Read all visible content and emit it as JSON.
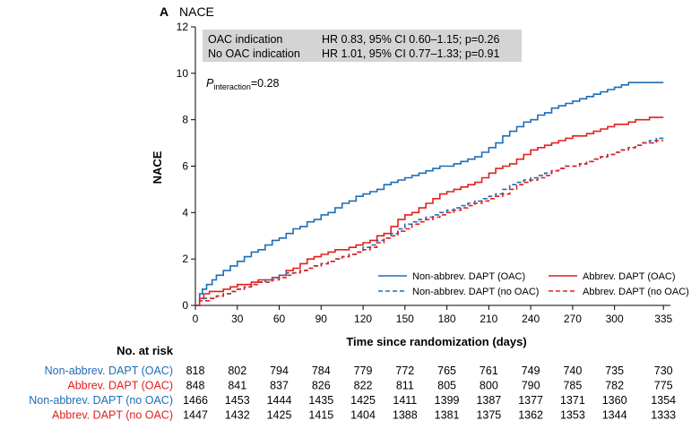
{
  "panel": {
    "letter": "A",
    "title": "NACE"
  },
  "chart_data": {
    "type": "line",
    "step": true,
    "xlabel": "Time since randomization (days)",
    "ylabel": "NACE",
    "xlim": [
      0,
      340
    ],
    "ylim": [
      0,
      12
    ],
    "x_ticks": [
      0,
      30,
      60,
      90,
      120,
      150,
      180,
      210,
      240,
      270,
      300,
      335
    ],
    "y_ticks": [
      0,
      2,
      4,
      6,
      8,
      10,
      12
    ],
    "grid": false,
    "legend_position": "bottom-right",
    "hr_box": [
      {
        "label": "OAC indication",
        "value": "HR 0.83, 95% CI 0.60–1.15; p=0.26"
      },
      {
        "label": "No OAC indication",
        "value": "HR 1.01, 95% CI 0.77–1.33; p=0.91"
      }
    ],
    "interaction": {
      "p": "P",
      "sub": "interaction",
      "value": "=0.28"
    },
    "series": [
      {
        "name": "Non-abbrev. DAPT (OAC)",
        "color": "#1f6db5",
        "dash": "solid",
        "x": [
          0,
          3,
          5,
          8,
          12,
          15,
          20,
          25,
          30,
          35,
          40,
          45,
          50,
          55,
          60,
          65,
          70,
          75,
          80,
          85,
          90,
          95,
          100,
          105,
          110,
          115,
          120,
          125,
          130,
          135,
          140,
          145,
          150,
          155,
          160,
          165,
          170,
          175,
          180,
          185,
          190,
          195,
          200,
          205,
          210,
          215,
          220,
          225,
          230,
          235,
          240,
          245,
          250,
          255,
          260,
          265,
          270,
          275,
          280,
          285,
          290,
          295,
          300,
          305,
          310,
          315,
          320,
          325,
          330,
          335
        ],
        "y": [
          0,
          0.5,
          0.7,
          0.9,
          1.1,
          1.3,
          1.5,
          1.7,
          1.9,
          2.1,
          2.3,
          2.4,
          2.6,
          2.8,
          2.9,
          3.1,
          3.3,
          3.4,
          3.6,
          3.7,
          3.9,
          4.0,
          4.2,
          4.4,
          4.5,
          4.7,
          4.8,
          4.9,
          5.0,
          5.2,
          5.3,
          5.4,
          5.5,
          5.6,
          5.7,
          5.8,
          5.9,
          6.0,
          6.0,
          6.1,
          6.2,
          6.3,
          6.4,
          6.6,
          6.8,
          7.0,
          7.3,
          7.5,
          7.7,
          7.9,
          8.0,
          8.2,
          8.3,
          8.5,
          8.6,
          8.7,
          8.8,
          8.9,
          9.0,
          9.1,
          9.2,
          9.3,
          9.4,
          9.5,
          9.6,
          9.6,
          9.6,
          9.6,
          9.6,
          9.6
        ]
      },
      {
        "name": "Abbrev. DAPT (OAC)",
        "color": "#e0201e",
        "dash": "solid",
        "x": [
          0,
          3,
          6,
          10,
          15,
          20,
          25,
          30,
          35,
          40,
          45,
          50,
          55,
          60,
          65,
          70,
          75,
          80,
          85,
          90,
          95,
          100,
          105,
          110,
          115,
          120,
          125,
          130,
          135,
          140,
          145,
          150,
          155,
          160,
          165,
          170,
          175,
          180,
          185,
          190,
          195,
          200,
          205,
          210,
          215,
          220,
          225,
          230,
          235,
          240,
          245,
          250,
          255,
          260,
          265,
          270,
          275,
          280,
          285,
          290,
          295,
          300,
          305,
          310,
          315,
          320,
          325,
          330,
          335
        ],
        "y": [
          0,
          0.3,
          0.5,
          0.6,
          0.6,
          0.7,
          0.8,
          0.9,
          0.9,
          1.0,
          1.1,
          1.1,
          1.2,
          1.3,
          1.5,
          1.6,
          1.8,
          2.0,
          2.1,
          2.2,
          2.3,
          2.4,
          2.4,
          2.5,
          2.6,
          2.7,
          2.8,
          3.0,
          3.1,
          3.4,
          3.7,
          3.9,
          4.0,
          4.2,
          4.4,
          4.6,
          4.8,
          4.9,
          5.0,
          5.1,
          5.2,
          5.3,
          5.5,
          5.7,
          5.9,
          6.0,
          6.1,
          6.3,
          6.5,
          6.7,
          6.8,
          6.9,
          7.0,
          7.1,
          7.2,
          7.3,
          7.3,
          7.4,
          7.5,
          7.6,
          7.7,
          7.8,
          7.8,
          7.9,
          8.0,
          8.0,
          8.1,
          8.1,
          8.1
        ]
      },
      {
        "name": "Non-abbrev. DAPT (no OAC)",
        "color": "#1f6db5",
        "dash": "dashed",
        "x": [
          0,
          3,
          6,
          10,
          15,
          20,
          25,
          30,
          35,
          40,
          45,
          50,
          55,
          60,
          65,
          70,
          75,
          80,
          85,
          90,
          95,
          100,
          105,
          110,
          115,
          120,
          125,
          130,
          135,
          140,
          145,
          150,
          155,
          160,
          165,
          170,
          175,
          180,
          185,
          190,
          195,
          200,
          205,
          210,
          215,
          220,
          225,
          230,
          235,
          240,
          245,
          250,
          255,
          260,
          265,
          270,
          275,
          280,
          285,
          290,
          295,
          300,
          305,
          310,
          315,
          320,
          325,
          330,
          335
        ],
        "y": [
          0,
          0.2,
          0.3,
          0.3,
          0.4,
          0.5,
          0.6,
          0.7,
          0.8,
          0.9,
          1.0,
          1.1,
          1.2,
          1.3,
          1.4,
          1.4,
          1.5,
          1.6,
          1.7,
          1.8,
          1.9,
          2.0,
          2.1,
          2.2,
          2.3,
          2.5,
          2.6,
          2.8,
          2.9,
          3.1,
          3.3,
          3.5,
          3.6,
          3.7,
          3.8,
          3.9,
          4.0,
          4.1,
          4.2,
          4.3,
          4.4,
          4.5,
          4.6,
          4.7,
          4.8,
          5.0,
          5.2,
          5.3,
          5.4,
          5.5,
          5.6,
          5.7,
          5.8,
          5.9,
          6.0,
          6.0,
          6.1,
          6.2,
          6.3,
          6.4,
          6.5,
          6.6,
          6.7,
          6.8,
          6.9,
          7.0,
          7.1,
          7.2,
          7.2
        ]
      },
      {
        "name": "Abbrev. DAPT (no OAC)",
        "color": "#e0201e",
        "dash": "dashed",
        "x": [
          0,
          3,
          6,
          10,
          15,
          20,
          25,
          30,
          35,
          40,
          45,
          50,
          55,
          60,
          65,
          70,
          75,
          80,
          85,
          90,
          95,
          100,
          105,
          110,
          115,
          120,
          125,
          130,
          135,
          140,
          145,
          150,
          155,
          160,
          165,
          170,
          175,
          180,
          185,
          190,
          195,
          200,
          205,
          210,
          215,
          220,
          225,
          230,
          235,
          240,
          245,
          250,
          255,
          260,
          265,
          270,
          275,
          280,
          285,
          290,
          295,
          300,
          305,
          310,
          315,
          320,
          325,
          330,
          335
        ],
        "y": [
          0,
          0.2,
          0.2,
          0.3,
          0.4,
          0.5,
          0.6,
          0.7,
          0.8,
          0.9,
          1.0,
          1.0,
          1.1,
          1.2,
          1.3,
          1.4,
          1.5,
          1.6,
          1.7,
          1.8,
          1.9,
          2.0,
          2.1,
          2.2,
          2.3,
          2.4,
          2.5,
          2.7,
          2.9,
          3.0,
          3.2,
          3.3,
          3.5,
          3.6,
          3.7,
          3.8,
          3.9,
          4.0,
          4.1,
          4.2,
          4.3,
          4.4,
          4.5,
          4.6,
          4.7,
          4.8,
          5.0,
          5.2,
          5.3,
          5.4,
          5.5,
          5.6,
          5.8,
          5.9,
          6.0,
          6.0,
          6.1,
          6.2,
          6.3,
          6.4,
          6.5,
          6.6,
          6.7,
          6.8,
          6.9,
          7.0,
          7.0,
          7.1,
          7.1
        ]
      }
    ]
  },
  "risk_table": {
    "title": "No. at risk",
    "rows": [
      {
        "label": "Non-abbrev. DAPT (OAC)",
        "color": "#1f6db5",
        "values": [
          "818",
          "802",
          "794",
          "784",
          "779",
          "772",
          "765",
          "761",
          "749",
          "740",
          "735",
          "730"
        ]
      },
      {
        "label": "Abbrev. DAPT (OAC)",
        "color": "#e0201e",
        "values": [
          "848",
          "841",
          "837",
          "826",
          "822",
          "811",
          "805",
          "800",
          "790",
          "785",
          "782",
          "775"
        ]
      },
      {
        "label": "Non-abbrev. DAPT (no OAC)",
        "color": "#1f6db5",
        "values": [
          "1466",
          "1453",
          "1444",
          "1435",
          "1425",
          "1411",
          "1399",
          "1387",
          "1377",
          "1371",
          "1360",
          "1354"
        ]
      },
      {
        "label": "Abbrev. DAPT (no OAC)",
        "color": "#e0201e",
        "values": [
          "1447",
          "1432",
          "1425",
          "1415",
          "1404",
          "1388",
          "1381",
          "1375",
          "1362",
          "1353",
          "1344",
          "1333"
        ]
      }
    ]
  }
}
